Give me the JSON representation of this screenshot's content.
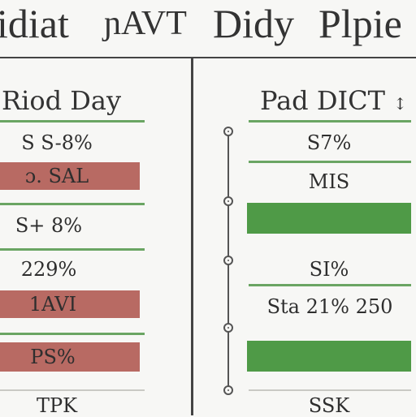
{
  "title": {
    "part1": "idiat",
    "part2": "ɲAVT",
    "part3": "Didy",
    "part4": "Plpie"
  },
  "left": {
    "header": "Riod Day",
    "rows": [
      "S  S-8%",
      "ɔ. SAL",
      "S+  8%",
      "229%",
      "1AVI",
      "PS%",
      "TPK"
    ]
  },
  "right": {
    "header": "Pad DICT",
    "header_suffix": "↕",
    "rows": [
      "S7%",
      "MIS",
      "SI%",
      "Sta  21%   250",
      "SSK"
    ]
  },
  "colors": {
    "red": "#b86a63",
    "green": "#4f9a47",
    "line_green": "#6aa563"
  },
  "icons": [
    "timeline-node-icon"
  ]
}
